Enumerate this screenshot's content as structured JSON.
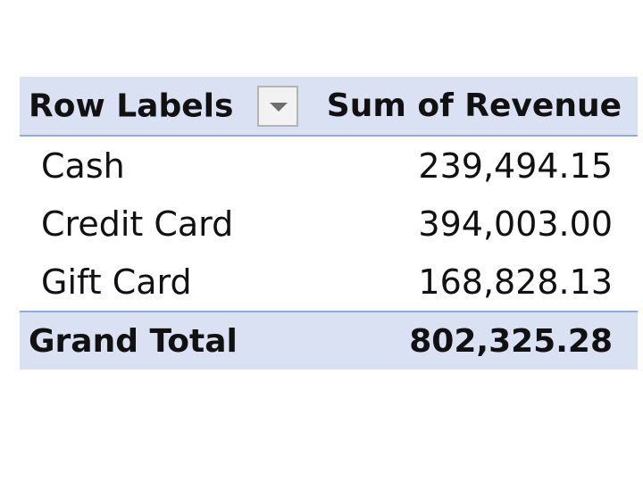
{
  "pivot_table": {
    "header": {
      "row_labels": "Row Labels",
      "value_field": "Sum of Revenue",
      "filter_icon": "dropdown-arrow"
    },
    "rows": [
      {
        "label": "Cash",
        "value": "239,494.15"
      },
      {
        "label": "Credit Card",
        "value": "394,003.00"
      },
      {
        "label": "Gift Card",
        "value": "168,828.13"
      }
    ],
    "grand_total": {
      "label": "Grand Total",
      "value": "802,325.28"
    },
    "colors": {
      "header_fill": "#d9e1f2",
      "border": "#8ea9db"
    }
  }
}
